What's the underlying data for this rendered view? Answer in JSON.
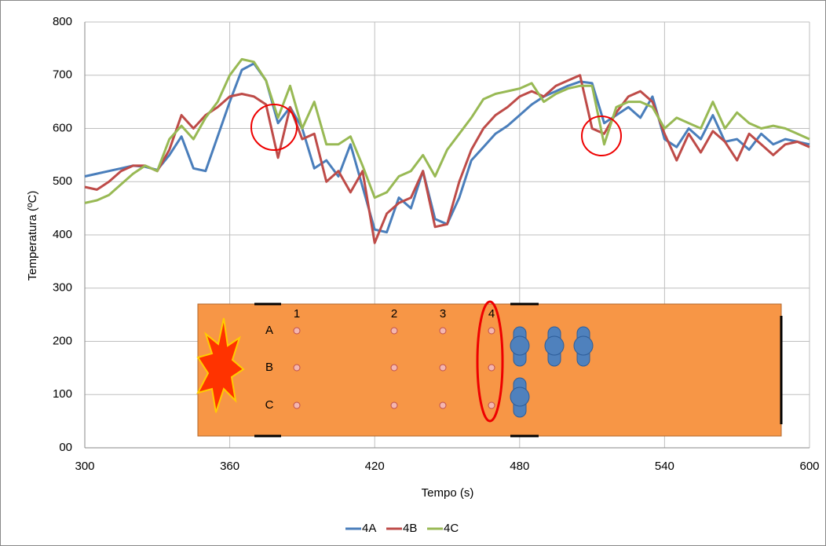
{
  "chart_data": {
    "type": "line",
    "x_label": "Tempo (s)",
    "y_label": "Temperatura (ºC)",
    "xlim": [
      300,
      600
    ],
    "xticks": [
      300,
      360,
      420,
      480,
      540,
      600
    ],
    "ylim": [
      0,
      800
    ],
    "yticks": [
      {
        "value": 0,
        "label": "00"
      },
      100,
      200,
      300,
      400,
      500,
      600,
      700,
      800
    ],
    "grid": true,
    "legend": "bottom",
    "x": [
      300,
      305,
      310,
      315,
      320,
      325,
      330,
      335,
      340,
      345,
      350,
      355,
      360,
      365,
      370,
      375,
      380,
      385,
      390,
      395,
      400,
      405,
      410,
      415,
      420,
      425,
      430,
      435,
      440,
      445,
      450,
      455,
      460,
      465,
      470,
      475,
      480,
      485,
      490,
      495,
      500,
      505,
      510,
      515,
      520,
      525,
      530,
      535,
      540,
      545,
      550,
      555,
      560,
      565,
      570,
      575,
      580,
      585,
      590,
      595,
      600
    ],
    "series": [
      {
        "name": "4A",
        "color": "#4a7ebb",
        "values": [
          510,
          515,
          520,
          525,
          530,
          528,
          522,
          550,
          585,
          525,
          520,
          585,
          650,
          710,
          722,
          690,
          610,
          640,
          600,
          525,
          540,
          510,
          570,
          490,
          410,
          405,
          470,
          450,
          520,
          430,
          420,
          470,
          540,
          565,
          590,
          605,
          625,
          645,
          660,
          670,
          680,
          688,
          685,
          610,
          625,
          640,
          620,
          660,
          580,
          565,
          600,
          580,
          625,
          575,
          580,
          560,
          590,
          570,
          580,
          575,
          570
        ]
      },
      {
        "name": "4B",
        "color": "#be4b48",
        "values": [
          490,
          485,
          500,
          520,
          530,
          530,
          520,
          560,
          625,
          600,
          625,
          640,
          660,
          665,
          660,
          645,
          545,
          640,
          580,
          590,
          500,
          520,
          480,
          520,
          385,
          440,
          460,
          470,
          520,
          415,
          420,
          500,
          560,
          600,
          625,
          640,
          660,
          670,
          660,
          680,
          690,
          700,
          600,
          590,
          630,
          660,
          670,
          650,
          590,
          540,
          590,
          555,
          595,
          575,
          540,
          590,
          570,
          550,
          570,
          575,
          565
        ]
      },
      {
        "name": "4C",
        "color": "#98b954",
        "values": [
          460,
          465,
          475,
          495,
          515,
          530,
          520,
          580,
          605,
          580,
          620,
          650,
          700,
          730,
          725,
          690,
          620,
          680,
          600,
          650,
          570,
          570,
          585,
          530,
          470,
          480,
          510,
          520,
          550,
          510,
          560,
          590,
          620,
          655,
          665,
          670,
          675,
          685,
          650,
          665,
          675,
          680,
          680,
          570,
          640,
          650,
          650,
          640,
          600,
          620,
          610,
          600,
          650,
          600,
          630,
          610,
          600,
          605,
          600,
          590,
          580
        ]
      }
    ],
    "inset": {
      "rows": [
        "A",
        "B",
        "C"
      ],
      "columns": [
        "1",
        "2",
        "3",
        "4"
      ]
    }
  }
}
